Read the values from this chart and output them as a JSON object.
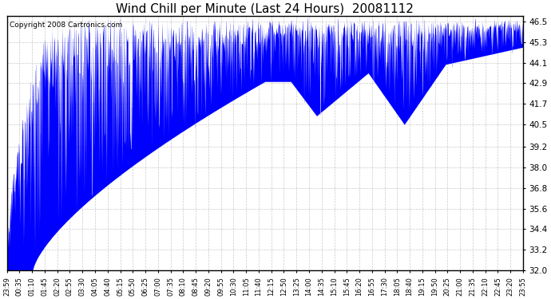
{
  "title": "Wind Chill per Minute (Last 24 Hours)  20081112",
  "copyright": "Copyright 2008 Cartronics.com",
  "ylim": [
    32.0,
    46.5
  ],
  "ylim_plot_max": 46.8,
  "yticks": [
    32.0,
    33.2,
    34.4,
    35.6,
    36.8,
    38.0,
    39.2,
    40.5,
    41.7,
    42.9,
    44.1,
    45.3,
    46.5
  ],
  "line_color": "#0000ff",
  "bg_color": "#ffffff",
  "plot_bg_color": "#ffffff",
  "grid_color": "#bbbbbb",
  "title_fontsize": 11,
  "copyright_fontsize": 6.5,
  "xtick_labels": [
    "23:59",
    "00:35",
    "01:10",
    "01:45",
    "02:20",
    "02:55",
    "03:30",
    "04:05",
    "04:40",
    "05:15",
    "05:50",
    "06:25",
    "07:00",
    "07:35",
    "08:10",
    "08:45",
    "09:20",
    "09:55",
    "10:30",
    "11:05",
    "11:40",
    "12:15",
    "12:50",
    "13:25",
    "14:00",
    "14:35",
    "15:10",
    "15:45",
    "16:20",
    "16:55",
    "17:30",
    "18:05",
    "18:40",
    "19:15",
    "19:50",
    "20:25",
    "21:00",
    "21:35",
    "22:10",
    "22:45",
    "23:20",
    "23:55"
  ],
  "num_points": 1440,
  "seed": 12345
}
